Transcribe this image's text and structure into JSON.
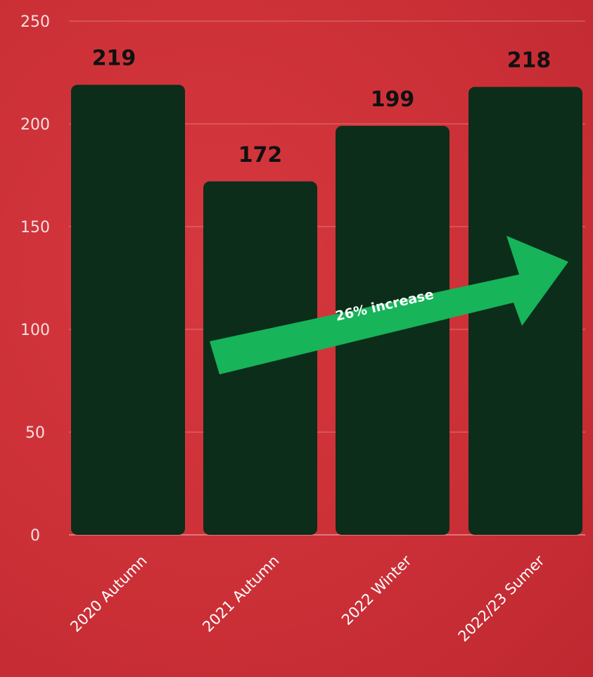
{
  "chart_data": {
    "type": "bar",
    "categories": [
      "2020 Autumn",
      "2021 Autumn",
      "2022 Winter",
      "2022/23 Sumer"
    ],
    "values": [
      219,
      172,
      199,
      218
    ],
    "value_labels": [
      "219",
      "172",
      "199",
      "218"
    ],
    "yticks": [
      "0",
      "50",
      "100",
      "150",
      "200",
      "250"
    ],
    "ylim": [
      0,
      250
    ],
    "grid": true,
    "annotation": "26% increase",
    "colors": {
      "background": "#cc3037",
      "bar": "#0c2d1a",
      "arrow": "#17b45a",
      "text": "#111111"
    }
  }
}
